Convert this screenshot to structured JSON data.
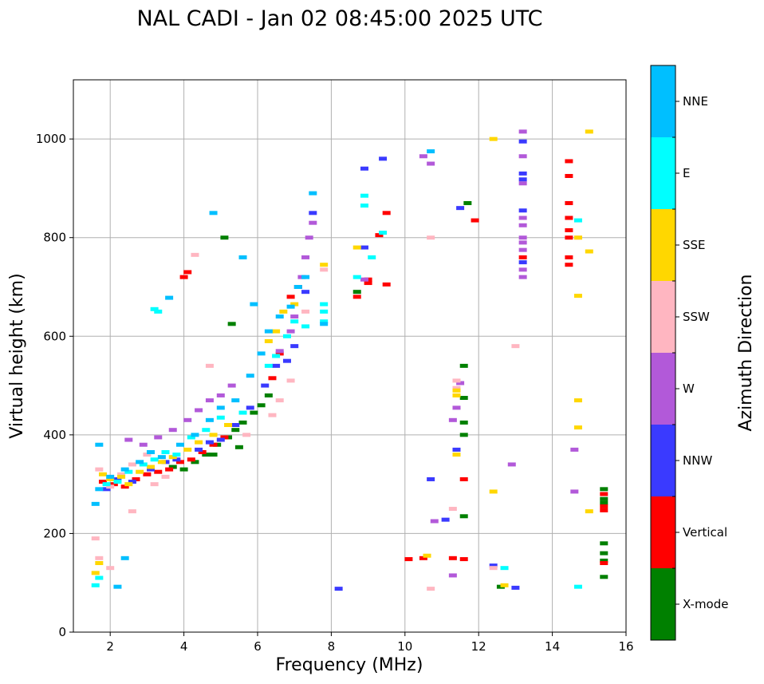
{
  "chart_data": {
    "type": "scatter",
    "title": "NAL CADI - Jan 02 08:45:00 2025 UTC",
    "xlabel": "Frequency (MHz)",
    "ylabel": "Virtual height (km)",
    "xlim": [
      1,
      16
    ],
    "ylim": [
      0,
      1120
    ],
    "xticks": [
      2,
      4,
      6,
      8,
      10,
      12,
      14,
      16
    ],
    "yticks": [
      0,
      200,
      400,
      600,
      800,
      1000
    ],
    "grid": true,
    "colorbar": {
      "label": "Azimuth Direction",
      "categories": [
        {
          "name": "X-mode",
          "color": "#008000"
        },
        {
          "name": "Vertical",
          "color": "#ff0000"
        },
        {
          "name": "NNW",
          "color": "#3a3aff"
        },
        {
          "name": "W",
          "color": "#b259d9"
        },
        {
          "name": "SSW",
          "color": "#ffb6c1"
        },
        {
          "name": "SSE",
          "color": "#ffd700"
        },
        {
          "name": "E",
          "color": "#00ffff"
        },
        {
          "name": "NNE",
          "color": "#00bfff"
        }
      ]
    },
    "series": [
      {
        "name": "X-mode",
        "points": [
          [
            4.0,
            330
          ],
          [
            4.3,
            345
          ],
          [
            4.6,
            360
          ],
          [
            4.9,
            380
          ],
          [
            5.2,
            395
          ],
          [
            5.4,
            410
          ],
          [
            5.6,
            425
          ],
          [
            5.9,
            445
          ],
          [
            6.1,
            460
          ],
          [
            6.3,
            480
          ],
          [
            5.1,
            800
          ],
          [
            5.3,
            625
          ],
          [
            11.6,
            540
          ],
          [
            11.6,
            475
          ],
          [
            11.6,
            425
          ],
          [
            11.6,
            400
          ],
          [
            11.6,
            235
          ],
          [
            11.7,
            870
          ],
          [
            15.4,
            290
          ],
          [
            15.4,
            270
          ],
          [
            15.4,
            262
          ],
          [
            15.4,
            145
          ],
          [
            15.4,
            112
          ],
          [
            15.4,
            180
          ],
          [
            15.4,
            160
          ],
          [
            8.7,
            690
          ],
          [
            3.7,
            335
          ],
          [
            4.8,
            360
          ],
          [
            5.5,
            375
          ],
          [
            12.6,
            92
          ]
        ]
      },
      {
        "name": "Vertical",
        "points": [
          [
            1.8,
            305
          ],
          [
            2.1,
            300
          ],
          [
            2.4,
            295
          ],
          [
            2.7,
            310
          ],
          [
            3.0,
            320
          ],
          [
            3.3,
            325
          ],
          [
            3.6,
            330
          ],
          [
            3.9,
            345
          ],
          [
            4.2,
            350
          ],
          [
            4.5,
            365
          ],
          [
            4.8,
            380
          ],
          [
            5.1,
            395
          ],
          [
            6.4,
            515
          ],
          [
            6.6,
            565
          ],
          [
            6.9,
            680
          ],
          [
            7.1,
            700
          ],
          [
            4.1,
            730
          ],
          [
            4.0,
            720
          ],
          [
            9.0,
            715
          ],
          [
            9.0,
            708
          ],
          [
            9.3,
            805
          ],
          [
            9.5,
            850
          ],
          [
            9.5,
            705
          ],
          [
            8.7,
            680
          ],
          [
            10.1,
            148
          ],
          [
            10.5,
            150
          ],
          [
            11.3,
            150
          ],
          [
            11.6,
            148
          ],
          [
            11.6,
            310
          ],
          [
            11.9,
            835
          ],
          [
            13.2,
            760
          ],
          [
            14.45,
            955
          ],
          [
            14.45,
            925
          ],
          [
            14.45,
            870
          ],
          [
            14.45,
            840
          ],
          [
            14.45,
            815
          ],
          [
            14.45,
            800
          ],
          [
            14.45,
            760
          ],
          [
            14.45,
            745
          ],
          [
            15.4,
            280
          ],
          [
            15.4,
            255
          ],
          [
            15.4,
            247
          ],
          [
            15.4,
            140
          ]
        ]
      },
      {
        "name": "NNW",
        "points": [
          [
            1.9,
            290
          ],
          [
            2.2,
            310
          ],
          [
            2.6,
            305
          ],
          [
            3.1,
            330
          ],
          [
            3.5,
            345
          ],
          [
            3.8,
            350
          ],
          [
            4.4,
            370
          ],
          [
            4.7,
            385
          ],
          [
            5.0,
            390
          ],
          [
            5.4,
            420
          ],
          [
            5.8,
            455
          ],
          [
            6.2,
            500
          ],
          [
            6.5,
            540
          ],
          [
            6.8,
            550
          ],
          [
            7.0,
            580
          ],
          [
            7.3,
            690
          ],
          [
            7.5,
            850
          ],
          [
            8.2,
            88
          ],
          [
            8.9,
            940
          ],
          [
            8.9,
            780
          ],
          [
            9.4,
            960
          ],
          [
            10.7,
            310
          ],
          [
            11.1,
            228
          ],
          [
            11.4,
            370
          ],
          [
            11.5,
            860
          ],
          [
            12.4,
            135
          ],
          [
            13.0,
            90
          ],
          [
            13.2,
            995
          ],
          [
            13.2,
            930
          ],
          [
            13.2,
            918
          ],
          [
            13.2,
            855
          ],
          [
            13.2,
            750
          ]
        ]
      },
      {
        "name": "W",
        "points": [
          [
            2.5,
            390
          ],
          [
            2.9,
            380
          ],
          [
            3.3,
            395
          ],
          [
            3.7,
            410
          ],
          [
            4.1,
            430
          ],
          [
            4.4,
            450
          ],
          [
            4.7,
            470
          ],
          [
            5.0,
            480
          ],
          [
            5.3,
            500
          ],
          [
            6.6,
            570
          ],
          [
            6.9,
            610
          ],
          [
            7.0,
            640
          ],
          [
            7.2,
            720
          ],
          [
            7.3,
            760
          ],
          [
            7.4,
            800
          ],
          [
            7.5,
            830
          ],
          [
            8.9,
            715
          ],
          [
            10.5,
            965
          ],
          [
            10.7,
            950
          ],
          [
            10.8,
            225
          ],
          [
            11.3,
            430
          ],
          [
            11.5,
            505
          ],
          [
            11.4,
            455
          ],
          [
            12.9,
            340
          ],
          [
            13.2,
            1015
          ],
          [
            13.2,
            965
          ],
          [
            13.2,
            910
          ],
          [
            13.2,
            840
          ],
          [
            13.2,
            825
          ],
          [
            13.2,
            800
          ],
          [
            13.2,
            790
          ],
          [
            13.2,
            775
          ],
          [
            13.2,
            735
          ],
          [
            13.2,
            720
          ],
          [
            14.6,
            370
          ],
          [
            14.6,
            285
          ],
          [
            11.3,
            115
          ]
        ]
      },
      {
        "name": "SSW",
        "points": [
          [
            1.7,
            330
          ],
          [
            2.0,
            295
          ],
          [
            2.3,
            320
          ],
          [
            2.6,
            340
          ],
          [
            3.0,
            360
          ],
          [
            3.2,
            300
          ],
          [
            3.5,
            315
          ],
          [
            4.3,
            765
          ],
          [
            4.7,
            540
          ],
          [
            5.7,
            400
          ],
          [
            6.4,
            440
          ],
          [
            6.6,
            470
          ],
          [
            6.9,
            510
          ],
          [
            7.3,
            650
          ],
          [
            7.8,
            735
          ],
          [
            10.7,
            800
          ],
          [
            10.7,
            88
          ],
          [
            11.3,
            250
          ],
          [
            11.4,
            510
          ],
          [
            11.4,
            495
          ],
          [
            12.4,
            130
          ],
          [
            13.0,
            580
          ],
          [
            14.7,
            800
          ],
          [
            1.6,
            190
          ],
          [
            1.7,
            150
          ],
          [
            2.0,
            130
          ],
          [
            2.6,
            245
          ]
        ]
      },
      {
        "name": "SSE",
        "points": [
          [
            1.8,
            320
          ],
          [
            2.0,
            310
          ],
          [
            2.3,
            315
          ],
          [
            2.5,
            300
          ],
          [
            2.8,
            325
          ],
          [
            3.1,
            335
          ],
          [
            3.4,
            345
          ],
          [
            3.7,
            355
          ],
          [
            4.1,
            370
          ],
          [
            4.4,
            385
          ],
          [
            4.8,
            400
          ],
          [
            5.2,
            420
          ],
          [
            6.3,
            590
          ],
          [
            6.5,
            610
          ],
          [
            6.7,
            650
          ],
          [
            7.0,
            665
          ],
          [
            7.8,
            745
          ],
          [
            8.7,
            780
          ],
          [
            11.4,
            490
          ],
          [
            11.4,
            480
          ],
          [
            11.4,
            360
          ],
          [
            10.6,
            155
          ],
          [
            12.4,
            1000
          ],
          [
            12.4,
            285
          ],
          [
            12.7,
            95
          ],
          [
            14.7,
            470
          ],
          [
            14.7,
            415
          ],
          [
            14.7,
            682
          ],
          [
            14.7,
            800
          ],
          [
            15.0,
            1015
          ],
          [
            15.0,
            772
          ],
          [
            15.0,
            245
          ],
          [
            1.6,
            120
          ],
          [
            1.7,
            140
          ]
        ]
      },
      {
        "name": "E",
        "points": [
          [
            1.9,
            300
          ],
          [
            2.2,
            305
          ],
          [
            2.5,
            325
          ],
          [
            2.9,
            340
          ],
          [
            3.2,
            350
          ],
          [
            3.5,
            365
          ],
          [
            3.8,
            360
          ],
          [
            4.2,
            395
          ],
          [
            4.6,
            410
          ],
          [
            5.0,
            435
          ],
          [
            5.6,
            445
          ],
          [
            6.3,
            540
          ],
          [
            6.5,
            560
          ],
          [
            6.8,
            600
          ],
          [
            7.0,
            630
          ],
          [
            7.3,
            620
          ],
          [
            7.8,
            665
          ],
          [
            7.8,
            650
          ],
          [
            7.8,
            630
          ],
          [
            8.9,
            885
          ],
          [
            8.9,
            865
          ],
          [
            9.1,
            760
          ],
          [
            8.7,
            720
          ],
          [
            9.4,
            810
          ],
          [
            12.7,
            130
          ],
          [
            14.7,
            835
          ],
          [
            14.7,
            92
          ],
          [
            1.6,
            95
          ],
          [
            1.7,
            110
          ],
          [
            3.2,
            655
          ],
          [
            3.3,
            650
          ]
        ]
      },
      {
        "name": "NNE",
        "points": [
          [
            1.7,
            290
          ],
          [
            2.0,
            315
          ],
          [
            2.4,
            330
          ],
          [
            2.8,
            345
          ],
          [
            3.1,
            365
          ],
          [
            3.4,
            355
          ],
          [
            3.9,
            380
          ],
          [
            4.3,
            400
          ],
          [
            4.7,
            430
          ],
          [
            5.0,
            455
          ],
          [
            5.4,
            470
          ],
          [
            5.8,
            520
          ],
          [
            6.1,
            565
          ],
          [
            6.3,
            610
          ],
          [
            6.6,
            640
          ],
          [
            6.9,
            660
          ],
          [
            7.1,
            700
          ],
          [
            7.3,
            720
          ],
          [
            7.5,
            890
          ],
          [
            7.8,
            625
          ],
          [
            5.6,
            760
          ],
          [
            4.8,
            850
          ],
          [
            5.9,
            665
          ],
          [
            2.4,
            150
          ],
          [
            2.2,
            92
          ],
          [
            1.6,
            260
          ],
          [
            1.7,
            380
          ],
          [
            3.6,
            678
          ],
          [
            10.7,
            975
          ]
        ]
      }
    ]
  }
}
